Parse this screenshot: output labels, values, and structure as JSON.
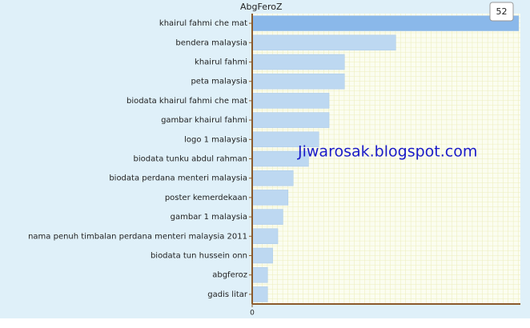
{
  "chart_data": {
    "type": "hbar",
    "title": "AbgFeroZ",
    "annotation": "Jiwarosak.blogspot.com",
    "categories": [
      "khairul fahmi che mat",
      "bendera malaysia",
      "khairul fahmi",
      "peta malaysia",
      "biodata khairul fahmi che mat",
      "gambar khairul fahmi",
      "logo 1 malaysia",
      "biodata tunku abdul rahman",
      "biodata perdana menteri malaysia",
      "poster kemerdekaan",
      "gambar 1 malaysia",
      "nama penuh timbalan perdana menteri malaysia 2011",
      "biodata tun hussein onn",
      "abgferoz",
      "gadis litar"
    ],
    "values": [
      52,
      28,
      18,
      18,
      15,
      15,
      13,
      11,
      8,
      7,
      6,
      5,
      4,
      3,
      3
    ],
    "colors": [
      "#8ab8ea",
      "#bdd8f1",
      "#bdd8f1",
      "#bdd8f1",
      "#bdd8f1",
      "#bdd8f1",
      "#bdd8f1",
      "#bdd8f1",
      "#bdd8f1",
      "#bdd8f1",
      "#bdd8f1",
      "#bdd8f1",
      "#bdd8f1",
      "#bdd8f1",
      "#bdd8f1"
    ],
    "xlim": [
      0,
      52
    ],
    "xticks": [
      0
    ],
    "grid": true
  }
}
